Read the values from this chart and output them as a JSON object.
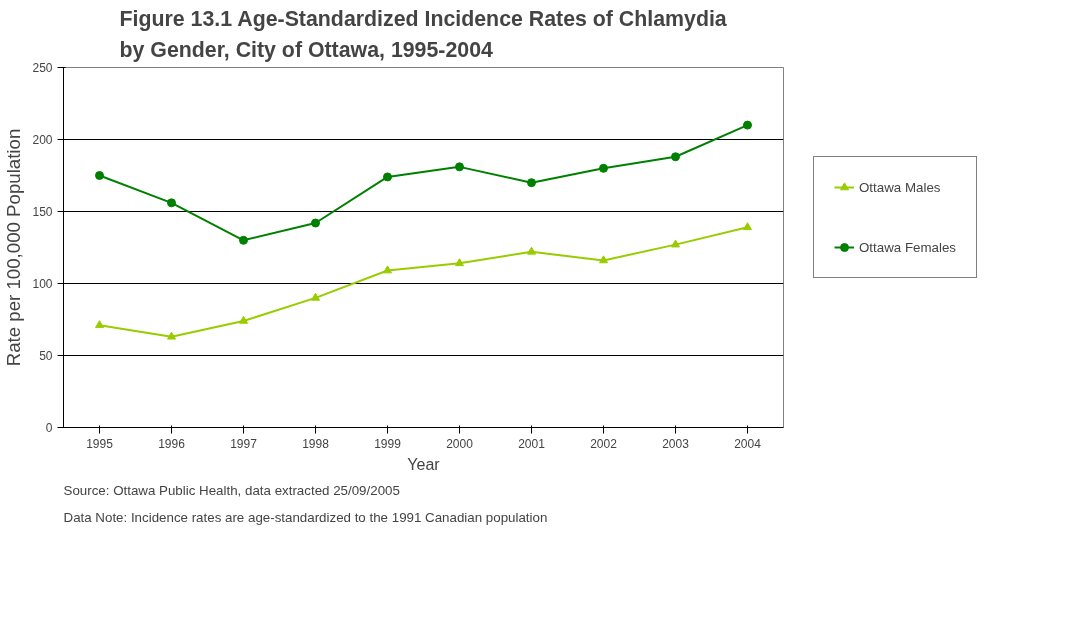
{
  "chart_data": {
    "type": "line",
    "title": "Figure 13.1 Age-Standardized Incidence Rates of Chlamydia\nby Gender, City of Ottawa, 1995-2004",
    "xlabel": "Year",
    "ylabel": "Rate per 100,000 Population",
    "categories": [
      "1995",
      "1996",
      "1997",
      "1998",
      "1999",
      "2000",
      "2001",
      "2002",
      "2003",
      "2004"
    ],
    "series": [
      {
        "name": "Ottawa Males",
        "color": "#99cc00",
        "marker": "triangle",
        "values": [
          71,
          63,
          74,
          90,
          109,
          114,
          122,
          116,
          127,
          139
        ]
      },
      {
        "name": "Ottawa Females",
        "color": "#008000",
        "marker": "circle",
        "values": [
          175,
          156,
          130,
          142,
          174,
          181,
          170,
          180,
          188,
          210
        ]
      }
    ],
    "ylim": [
      0,
      250
    ],
    "yticks": [
      0,
      50,
      100,
      150,
      200,
      250
    ],
    "grid": "y",
    "legend": "right",
    "annotations": [
      "Source: Ottawa Public Health, data extracted 25/09/2005",
      "Data Note: Incidence rates are age-standardized to the 1991 Canadian population"
    ]
  }
}
